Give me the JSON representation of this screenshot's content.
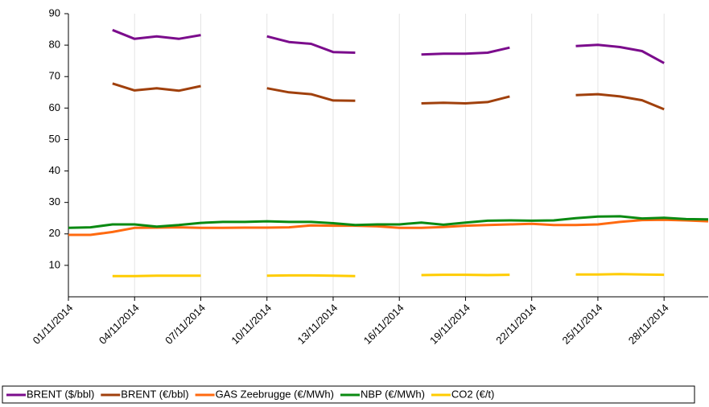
{
  "chart_data": {
    "type": "line",
    "categories": [
      "01/11/2014",
      null,
      null,
      "04/11/2014",
      null,
      null,
      "07/11/2014",
      null,
      null,
      "10/11/2014",
      null,
      null,
      "13/11/2014",
      null,
      null,
      "16/11/2014",
      null,
      null,
      "19/11/2014",
      null,
      null,
      "22/11/2014",
      null,
      null,
      "25/11/2014",
      null,
      null,
      "28/11/2014",
      null,
      null
    ],
    "series": [
      {
        "name": "BRENT ($/bbl)",
        "color": "#7b0c8c",
        "values": [
          null,
          null,
          84.8,
          82.0,
          82.8,
          82.0,
          83.2,
          null,
          null,
          82.8,
          81.0,
          80.4,
          77.8,
          77.6,
          null,
          null,
          77.0,
          77.3,
          77.3,
          77.6,
          79.2,
          null,
          null,
          79.7,
          80.1,
          79.4,
          78.1,
          74.3,
          null,
          null
        ]
      },
      {
        "name": "BRENT (€/bbl)",
        "color": "#a0400c",
        "values": [
          null,
          null,
          67.8,
          65.6,
          66.3,
          65.5,
          67.0,
          null,
          null,
          66.3,
          65.0,
          64.4,
          62.4,
          62.3,
          null,
          null,
          61.5,
          61.7,
          61.5,
          61.9,
          63.7,
          null,
          null,
          64.1,
          64.4,
          63.7,
          62.5,
          59.6,
          null,
          null
        ]
      },
      {
        "name": "GAS Zeebrugge (€/MWh)",
        "color": "#ff6a10",
        "values": [
          19.7,
          19.7,
          20.6,
          21.9,
          22.0,
          22.1,
          21.9,
          21.9,
          22.0,
          22.0,
          22.1,
          22.7,
          22.6,
          22.6,
          22.4,
          21.9,
          21.9,
          22.2,
          22.6,
          22.8,
          23.0,
          23.2,
          22.8,
          22.8,
          23.0,
          23.8,
          24.4,
          24.5,
          24.3,
          24.0
        ]
      },
      {
        "name": "NBP (€/MWh)",
        "color": "#0a8a12",
        "values": [
          21.9,
          22.1,
          23.0,
          23.0,
          22.3,
          22.8,
          23.5,
          23.8,
          23.8,
          24.0,
          23.8,
          23.8,
          23.4,
          22.8,
          23.0,
          23.0,
          23.6,
          22.9,
          23.6,
          24.2,
          24.3,
          24.2,
          24.3,
          25.0,
          25.5,
          25.6,
          24.9,
          25.1,
          24.7,
          24.6
        ]
      },
      {
        "name": "CO2 (€/t)",
        "color": "#ffcc00",
        "values": [
          null,
          null,
          6.6,
          6.6,
          6.7,
          6.7,
          6.7,
          null,
          null,
          6.7,
          6.8,
          6.8,
          6.7,
          6.6,
          null,
          null,
          6.9,
          7.0,
          7.0,
          6.9,
          7.0,
          null,
          null,
          7.1,
          7.1,
          7.2,
          7.1,
          7.0,
          null,
          null
        ]
      }
    ],
    "ylim": [
      0,
      90
    ],
    "yticks": [
      10,
      20,
      30,
      40,
      50,
      60,
      70,
      80,
      90
    ],
    "grid": true,
    "legend": "bottom"
  }
}
